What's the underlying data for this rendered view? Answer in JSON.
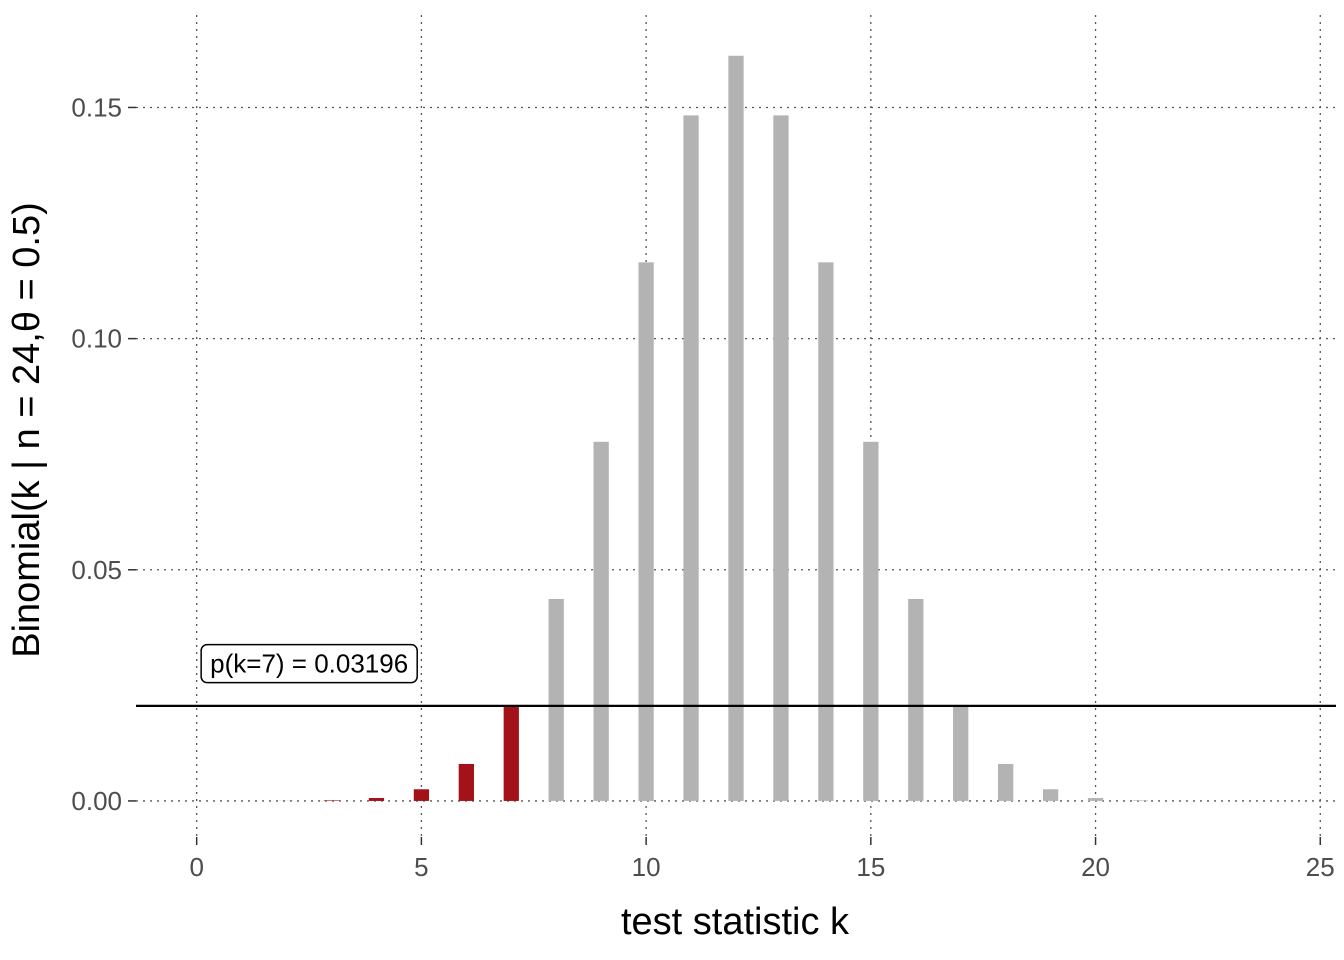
{
  "chart_data": {
    "type": "bar",
    "xlabel": "test statistic k",
    "ylabel": "Binomial(k | n = 24,θ = 0.5)",
    "xlim": [
      -1.35,
      25.35
    ],
    "ylim": [
      -0.0078,
      0.17
    ],
    "x_ticks": [
      0,
      5,
      10,
      15,
      20,
      25
    ],
    "x_tick_labels": [
      "0",
      "5",
      "10",
      "15",
      "20",
      "25"
    ],
    "y_ticks": [
      0,
      0.05,
      0.1,
      0.15
    ],
    "y_tick_labels": [
      "0.00",
      "0.05",
      "0.10",
      "0.15"
    ],
    "grid": "dotted",
    "colors": {
      "extreme": "#a31219",
      "other": "#b3b3b3",
      "line": "#000000",
      "grid": "#555555"
    },
    "x": [
      0,
      1,
      2,
      3,
      4,
      5,
      6,
      7,
      8,
      9,
      10,
      11,
      12,
      13,
      14,
      15,
      16,
      17,
      18,
      19,
      20,
      21,
      22,
      23,
      24
    ],
    "values": [
      1e-07,
      1.4e-06,
      1.64e-05,
      0.0001202,
      0.0006313,
      0.0025253,
      0.0079994,
      0.0205642,
      0.043695,
      0.077679,
      0.116496,
      0.148286,
      0.161181,
      0.148286,
      0.116496,
      0.077679,
      0.043695,
      0.0205642,
      0.0079994,
      0.0025253,
      0.0006313,
      0.0001202,
      1.64e-05,
      1.4e-06,
      1e-07
    ],
    "highlighted": [
      true,
      true,
      true,
      true,
      true,
      true,
      true,
      true,
      false,
      false,
      false,
      false,
      false,
      false,
      false,
      false,
      false,
      false,
      false,
      false,
      false,
      false,
      false,
      false,
      false
    ],
    "reference_line_y": 0.0205642,
    "annotation": {
      "text": "p(k=7) = 0.03196",
      "x": 0.3,
      "y": 0.0297
    }
  }
}
